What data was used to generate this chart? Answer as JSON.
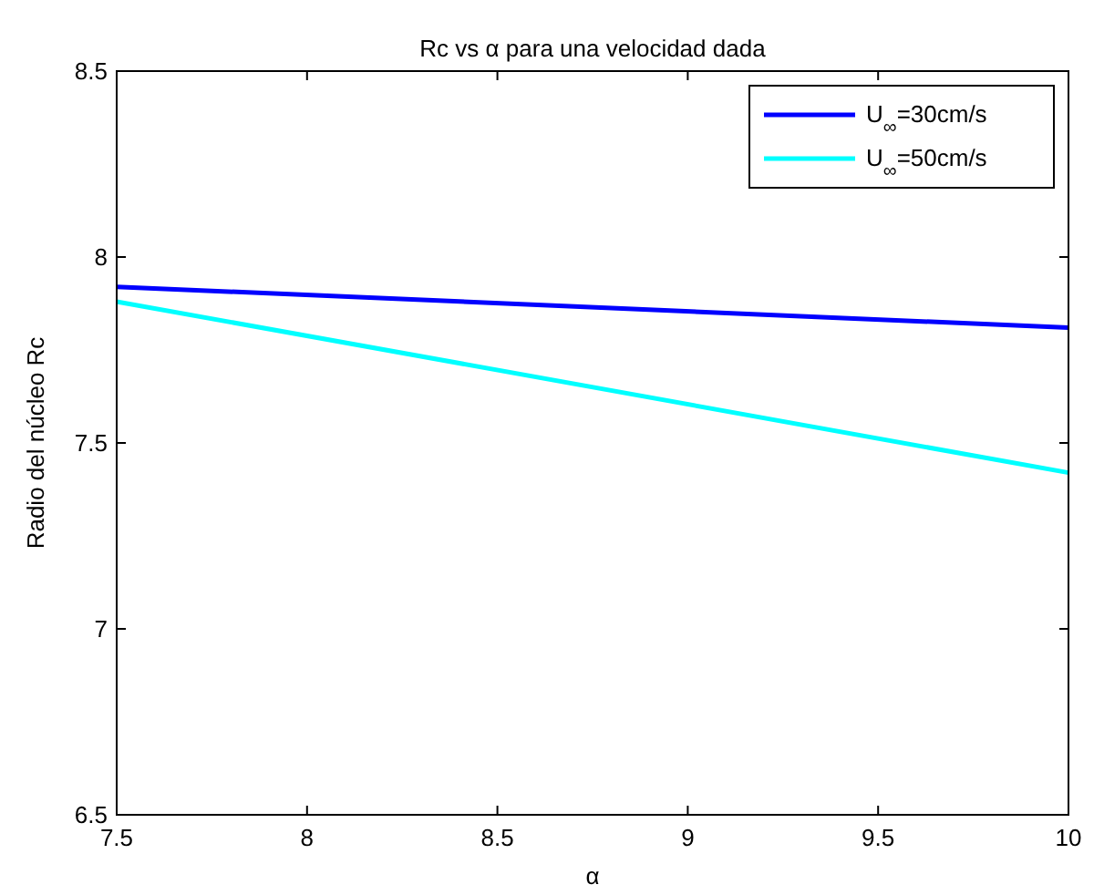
{
  "chart_data": {
    "type": "line",
    "title": "Rc vs α para una velocidad dada",
    "xlabel": "α",
    "ylabel": "Radio del núcleo Rc",
    "x": [
      7.5,
      10
    ],
    "series": [
      {
        "name": "U$_{∞}$=30cm/s",
        "color": "#0000ff",
        "values": [
          7.92,
          7.81
        ]
      },
      {
        "name": "U$_{∞}$=50cm/s",
        "color": "#00ffff",
        "values": [
          7.88,
          7.42
        ]
      }
    ],
    "xlim": [
      7.5,
      10
    ],
    "xticks": [
      7.5,
      8,
      8.5,
      9,
      9.5,
      10
    ],
    "ylim": [
      6.5,
      8.5
    ],
    "yticks": [
      6.5,
      7,
      7.5,
      8,
      8.5
    ],
    "grid": false,
    "legend": "top right",
    "line_style": "solid"
  }
}
